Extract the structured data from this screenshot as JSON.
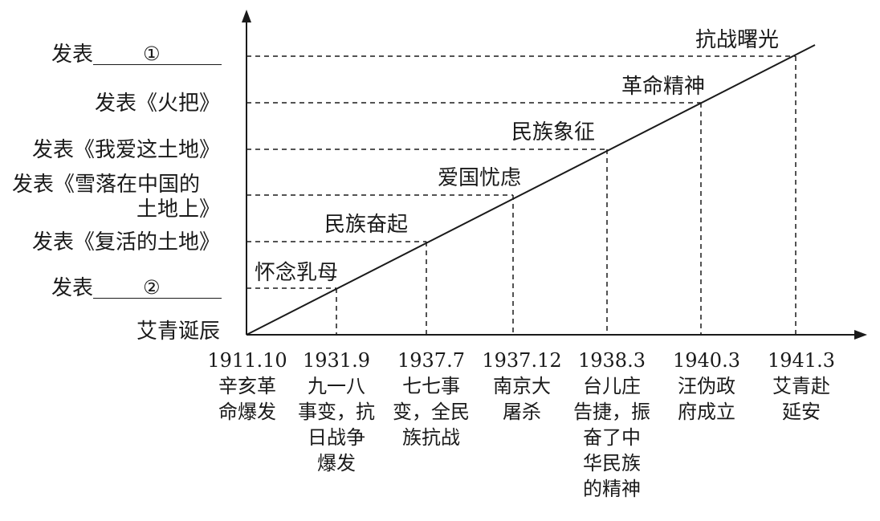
{
  "y_labels": [
    {
      "prefix": "发表",
      "blank_mark": "①",
      "text": ""
    },
    {
      "text": "发表《火把》"
    },
    {
      "text": "发表《我爱这土地》"
    },
    {
      "text": "发表《雪落在中国的",
      "text2": "土地上》"
    },
    {
      "text": "发表《复活的土地》"
    },
    {
      "prefix": "发表",
      "blank_mark": "②",
      "text": ""
    },
    {
      "text": "艾青诞辰"
    }
  ],
  "line_labels": [
    "怀念乳母",
    "民族奋起",
    "爱国忧虑",
    "民族象征",
    "革命精神",
    "抗战曙光"
  ],
  "x_labels": [
    {
      "date": "1911.10",
      "lines": [
        "辛亥革",
        "命爆发"
      ]
    },
    {
      "date": "1931.9",
      "lines": [
        "九一八",
        "事变，抗",
        "日战争",
        "爆发"
      ]
    },
    {
      "date": "1937.7",
      "lines": [
        "七七事",
        "变，全民",
        "族抗战"
      ]
    },
    {
      "date": "1937.12",
      "lines": [
        "南京大",
        "屠杀"
      ]
    },
    {
      "date": "1938.3",
      "lines": [
        "台儿庄",
        "告捷，振",
        "奋了中",
        "华民族",
        "的精神"
      ]
    },
    {
      "date": "1940.3",
      "lines": [
        "汪伪政",
        "府成立"
      ]
    },
    {
      "date": "1941.3",
      "lines": [
        "艾青赴",
        "延安"
      ]
    }
  ]
}
